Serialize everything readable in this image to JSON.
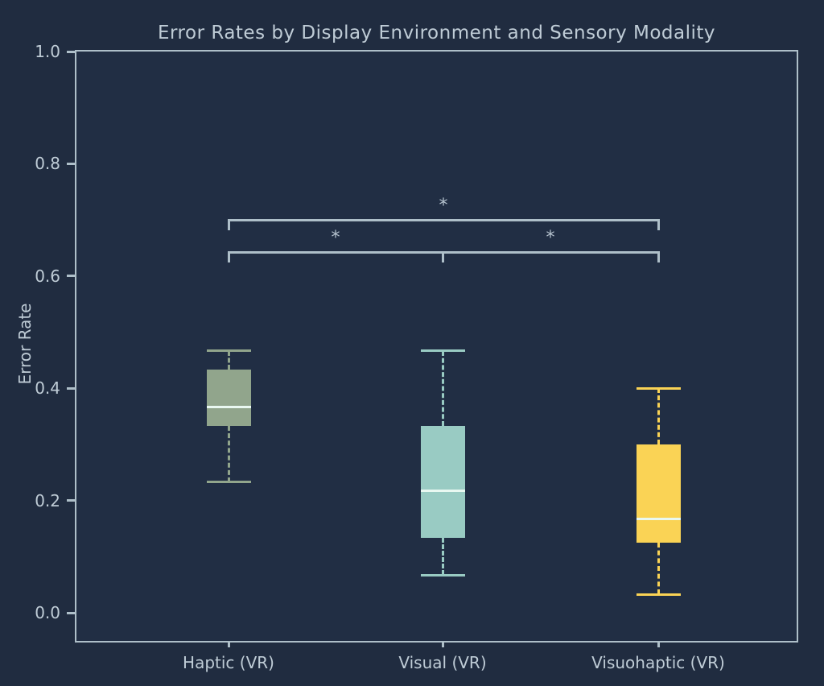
{
  "title": "Error Rates by Display Environment and Sensory Modality",
  "colors": {
    "figure_background": "#202c40",
    "axes_background": "#212e44",
    "spine": "#aebfc9",
    "text": "#bfccd6",
    "median_line": "#e9f8f1",
    "bracket": "#aebfc9"
  },
  "chart_data": {
    "type": "box",
    "title": "Error Rates by Display Environment and Sensory Modality",
    "xlabel": "",
    "ylabel": "Error Rate",
    "ylim": [
      -0.05,
      1.0
    ],
    "grid": false,
    "legend": false,
    "ytick_labels": [
      "0.0",
      "0.2",
      "0.4",
      "0.6",
      "0.8",
      "1.0"
    ],
    "ytick_values": [
      0.0,
      0.2,
      0.4,
      0.6,
      0.8,
      1.0
    ],
    "categories": [
      "Haptic (VR)",
      "Visual (VR)",
      "Visuohaptic (VR)"
    ],
    "series": [
      {
        "label": "Haptic (VR)",
        "whisker_low": 0.233,
        "q1": 0.333,
        "median": 0.367,
        "q3": 0.433,
        "whisker_high": 0.467,
        "color": "#91a58c"
      },
      {
        "label": "Visual (VR)",
        "whisker_low": 0.067,
        "q1": 0.133,
        "median": 0.217,
        "q3": 0.333,
        "whisker_high": 0.467,
        "color": "#99cbc3"
      },
      {
        "label": "Visuohaptic (VR)",
        "whisker_low": 0.033,
        "q1": 0.125,
        "median": 0.167,
        "q3": 0.3,
        "whisker_high": 0.4,
        "color": "#fad355"
      }
    ],
    "significance_brackets": [
      {
        "from": "Haptic (VR)",
        "to": "Visuohaptic (VR)",
        "label": "*",
        "level": "upper"
      },
      {
        "from": "Haptic (VR)",
        "to": "Visual (VR)",
        "label": "*",
        "level": "lower"
      },
      {
        "from": "Visual (VR)",
        "to": "Visuohaptic (VR)",
        "label": "*",
        "level": "lower"
      }
    ]
  }
}
